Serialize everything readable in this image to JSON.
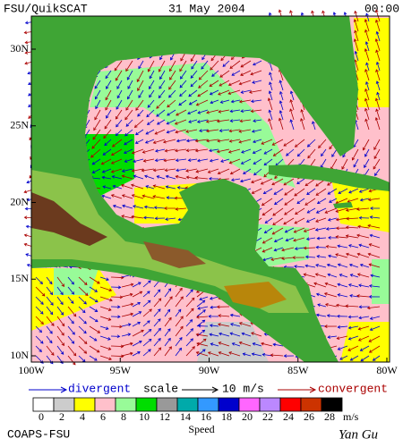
{
  "header": {
    "product": "FSU/QuikSCAT",
    "date": "31 May 2004",
    "time": "00:00"
  },
  "map": {
    "lat_ticks": [
      {
        "value": 10,
        "label": "10N"
      },
      {
        "value": 15,
        "label": "15N"
      },
      {
        "value": 20,
        "label": "20N"
      },
      {
        "value": 25,
        "label": "25N"
      },
      {
        "value": 30,
        "label": "30N"
      }
    ],
    "lon_ticks": [
      {
        "value": -100,
        "label": "100W"
      },
      {
        "value": -95,
        "label": "95W"
      },
      {
        "value": -90,
        "label": "90W"
      },
      {
        "value": -85,
        "label": "85W"
      },
      {
        "value": -80,
        "label": "80W"
      }
    ]
  },
  "legend": {
    "divergent": "divergent",
    "scale": "scale",
    "scale_value": "10 m/s",
    "convergent": "convergent"
  },
  "colorbar": {
    "ticks": [
      0,
      2,
      4,
      6,
      8,
      10,
      12,
      14,
      16,
      18,
      20,
      22,
      24,
      26,
      28
    ],
    "unit": "m/s",
    "label": "Speed",
    "colors": [
      "#ffffff",
      "#cccccc",
      "#ffff00",
      "#ffc0cb",
      "#98fb98",
      "#00dd00",
      "#999999",
      "#00aaaa",
      "#3399ff",
      "#0000cc",
      "#ff66ff",
      "#bb88ff",
      "#ff0000",
      "#cc3300",
      "#000000"
    ]
  },
  "footer": {
    "credit": "COAPS-FSU",
    "signature": "Yan Gu"
  }
}
